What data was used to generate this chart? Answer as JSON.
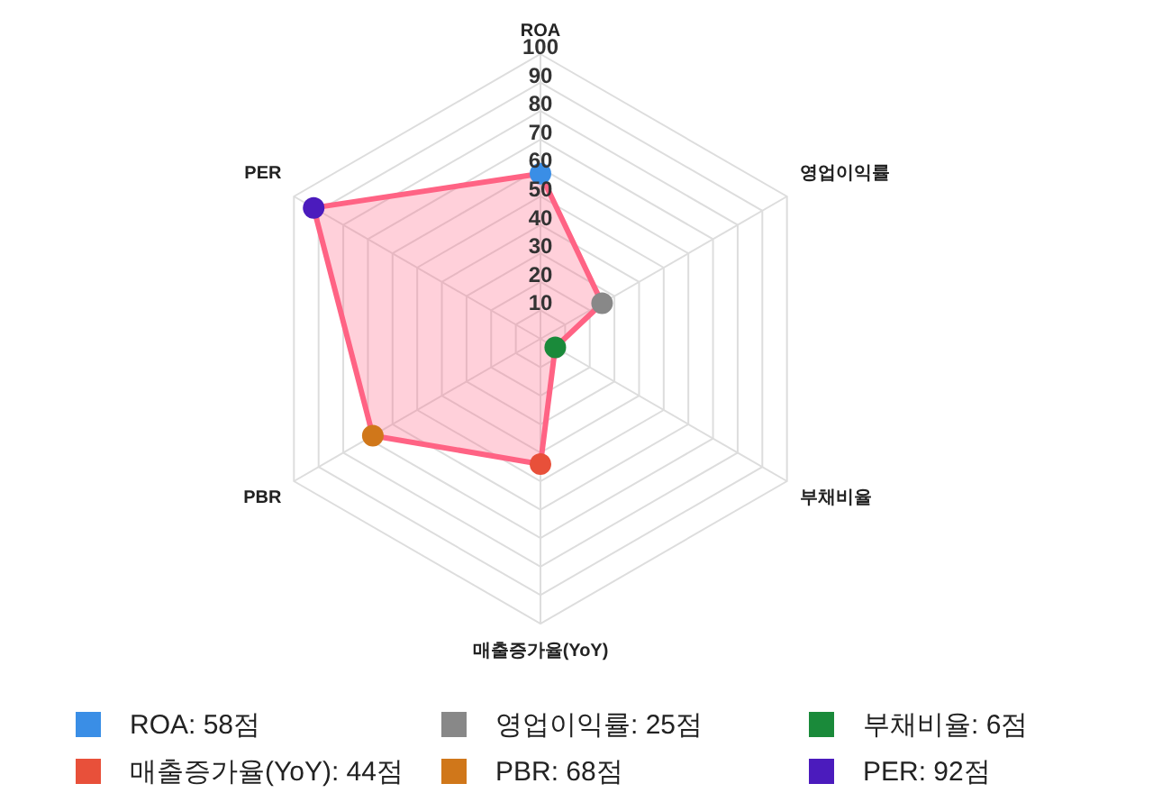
{
  "chart_data": {
    "type": "radar",
    "categories": [
      "ROA",
      "영업이익률",
      "부채비율",
      "매출증가율(YoY)",
      "PBR",
      "PER"
    ],
    "series": [
      {
        "color": "#ff6384",
        "colors": [
          "#3a8ee6",
          "#888888",
          "#1a8a3a",
          "#e8503a",
          "#d0771a",
          "#4b1bbd"
        ],
        "values": [
          58,
          25,
          6,
          44,
          68,
          92
        ]
      }
    ],
    "annotations": [
      "ROA: 58점",
      "영업이익률: 25점",
      "부채비율: 6점",
      "매출증가율(YoY): 44점",
      "PBR: 68점",
      "PER: 92점"
    ],
    "ylim": [
      0,
      100
    ],
    "yticks": [
      10,
      20,
      30,
      40,
      50,
      60,
      70,
      80,
      90,
      100
    ],
    "grid": true,
    "marker": "circle"
  }
}
